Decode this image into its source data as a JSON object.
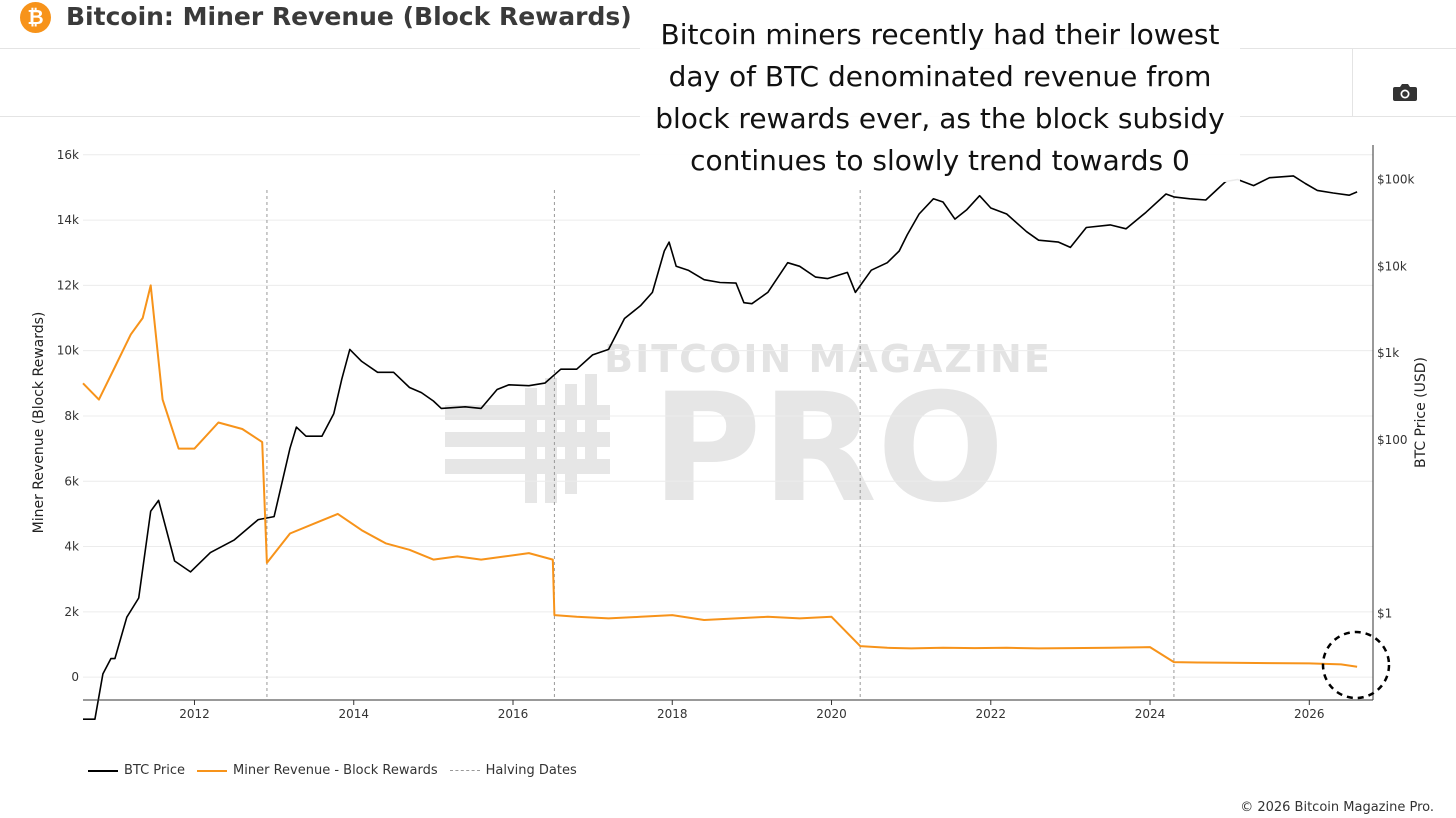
{
  "header": {
    "logo_glyph": "₿",
    "title": "Bitcoin: Miner Revenue (Block Rewards)"
  },
  "toolbar": {
    "camera_icon": "camera-icon"
  },
  "annotation": {
    "lines": [
      "Bitcoin miners recently had their lowest",
      "day of BTC denominated revenue from",
      "block rewards ever, as the block subsidy",
      "continues to slowly trend towards 0"
    ]
  },
  "watermark": {
    "line1": "BITCOIN MAGAZINE",
    "line2": "PRO"
  },
  "legend": {
    "btc_price": "BTC Price",
    "miner_revenue": "Miner Revenue - Block Rewards",
    "halving": "Halving Dates"
  },
  "copyright": "© 2026 Bitcoin Magazine Pro.",
  "colors": {
    "btc_price": "#000000",
    "miner_revenue": "#f7931a",
    "halving": "#999999",
    "logo": "#f7931a"
  },
  "chart_data": {
    "type": "line",
    "title": "Bitcoin: Miner Revenue (Block Rewards)",
    "xlabel": "",
    "ylabel_left": "Miner Revenue (Block Rewards)",
    "ylabel_right": "BTC Price (USD)",
    "x_ticks": [
      "2012",
      "2014",
      "2016",
      "2018",
      "2020",
      "2022",
      "2024",
      "2026"
    ],
    "xlim": [
      2010.6,
      2026.8
    ],
    "y_left": {
      "ticks": [
        "0",
        "2k",
        "4k",
        "6k",
        "8k",
        "10k",
        "12k",
        "14k",
        "16k"
      ],
      "values": [
        0,
        2000,
        4000,
        6000,
        8000,
        10000,
        12000,
        14000,
        16000
      ],
      "ylim": [
        -700,
        16300
      ]
    },
    "y_right": {
      "scale": "log",
      "ticks": [
        "$1",
        "$100",
        "$1k",
        "$10k",
        "$100k"
      ],
      "values": [
        1,
        100,
        1000,
        10000,
        100000
      ],
      "ylim": [
        0.1,
        250000
      ]
    },
    "halving_dates": [
      2012.91,
      2016.52,
      2020.36,
      2024.3
    ],
    "series": [
      {
        "name": "BTC Price",
        "axis": "right",
        "x": [
          2010.6,
          2010.75,
          2010.85,
          2010.95,
          2011.0,
          2011.15,
          2011.3,
          2011.45,
          2011.55,
          2011.75,
          2011.95,
          2012.2,
          2012.5,
          2012.8,
          2013.0,
          2013.2,
          2013.28,
          2013.4,
          2013.6,
          2013.75,
          2013.85,
          2013.95,
          2014.1,
          2014.3,
          2014.5,
          2014.7,
          2014.85,
          2015.0,
          2015.1,
          2015.4,
          2015.6,
          2015.8,
          2015.95,
          2016.2,
          2016.4,
          2016.6,
          2016.8,
          2017.0,
          2017.2,
          2017.4,
          2017.6,
          2017.75,
          2017.9,
          2017.96,
          2018.05,
          2018.2,
          2018.4,
          2018.6,
          2018.8,
          2018.9,
          2019.0,
          2019.2,
          2019.45,
          2019.6,
          2019.8,
          2019.95,
          2020.2,
          2020.3,
          2020.5,
          2020.7,
          2020.85,
          2020.95,
          2021.1,
          2021.28,
          2021.4,
          2021.55,
          2021.7,
          2021.86,
          2022.0,
          2022.2,
          2022.45,
          2022.6,
          2022.85,
          2023.0,
          2023.2,
          2023.5,
          2023.7,
          2023.95,
          2024.2,
          2024.3,
          2024.5,
          2024.7,
          2024.95,
          2025.1,
          2025.3,
          2025.5,
          2025.8,
          2025.95,
          2026.1,
          2026.3,
          2026.5,
          2026.6
        ],
        "y": [
          0.06,
          0.06,
          0.2,
          0.3,
          0.3,
          0.9,
          1.5,
          15,
          20,
          4,
          3,
          5,
          7,
          12,
          13,
          80,
          140,
          110,
          110,
          200,
          500,
          1100,
          800,
          600,
          600,
          400,
          350,
          280,
          230,
          240,
          230,
          380,
          430,
          420,
          450,
          650,
          650,
          950,
          1100,
          2500,
          3500,
          5000,
          15000,
          19000,
          10000,
          9000,
          7000,
          6500,
          6400,
          3800,
          3700,
          5000,
          11000,
          10000,
          7500,
          7200,
          8500,
          5000,
          9000,
          11000,
          15000,
          23000,
          40000,
          60000,
          55000,
          35000,
          45000,
          65000,
          47000,
          40000,
          25000,
          20000,
          19000,
          16500,
          28000,
          30000,
          27000,
          42000,
          68000,
          63000,
          60000,
          58000,
          95000,
          100000,
          85000,
          105000,
          110000,
          90000,
          75000,
          70000,
          66000,
          72000
        ]
      },
      {
        "name": "Miner Revenue - Block Rewards",
        "axis": "left",
        "x": [
          2010.6,
          2010.8,
          2011.0,
          2011.2,
          2011.35,
          2011.45,
          2011.6,
          2011.8,
          2012.0,
          2012.3,
          2012.6,
          2012.85,
          2012.91,
          2013.2,
          2013.5,
          2013.8,
          2014.1,
          2014.4,
          2014.7,
          2015.0,
          2015.3,
          2015.6,
          2015.9,
          2016.2,
          2016.5,
          2016.52,
          2016.8,
          2017.2,
          2017.6,
          2018.0,
          2018.4,
          2018.8,
          2019.2,
          2019.6,
          2020.0,
          2020.36,
          2020.7,
          2021.0,
          2021.4,
          2021.8,
          2022.2,
          2022.6,
          2023.0,
          2023.5,
          2024.0,
          2024.3,
          2024.6,
          2025.0,
          2025.5,
          2026.0,
          2026.4,
          2026.6
        ],
        "y": [
          9000,
          8500,
          9500,
          10500,
          11000,
          12000,
          8500,
          7000,
          7000,
          7800,
          7600,
          7200,
          3500,
          4400,
          4700,
          5000,
          4500,
          4100,
          3900,
          3600,
          3700,
          3600,
          3700,
          3800,
          3600,
          1900,
          1850,
          1800,
          1850,
          1900,
          1750,
          1800,
          1850,
          1800,
          1850,
          950,
          900,
          880,
          900,
          890,
          900,
          880,
          890,
          900,
          920,
          460,
          450,
          440,
          430,
          420,
          390,
          320
        ]
      }
    ]
  }
}
